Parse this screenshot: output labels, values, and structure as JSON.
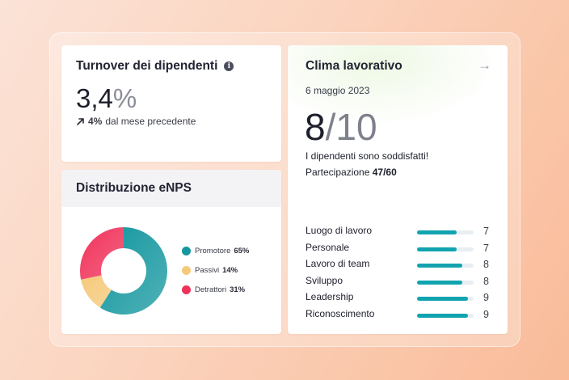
{
  "turnover": {
    "title": "Turnover dei dipendenti",
    "value": "3,4",
    "value_unit": "%",
    "delta_value": "4%",
    "delta_text": "dal mese precedente"
  },
  "enps": {
    "title": "Distribuzione eNPS",
    "segments": [
      {
        "label": "Promotore",
        "pct_label": "65%",
        "value": 65,
        "color": "#15979f"
      },
      {
        "label": "Passivi",
        "pct_label": "14%",
        "value": 14,
        "color": "#f5c97a"
      },
      {
        "label": "Detrattori",
        "pct_label": "31%",
        "value": 31,
        "color": "#f0325a"
      }
    ]
  },
  "clima": {
    "title": "Clima lavorativo",
    "date": "6 maggio 2023",
    "score": "8",
    "score_max": "/10",
    "message": "I dipendenti sono soddisfatti!",
    "participation_label": "Partecipazione",
    "participation_value": "47/60",
    "max_score": 10,
    "categories": [
      {
        "label": "Luogo di lavoro",
        "score": 7
      },
      {
        "label": "Personale",
        "score": 7
      },
      {
        "label": "Lavoro di team",
        "score": 8
      },
      {
        "label": "Sviluppo",
        "score": 8
      },
      {
        "label": "Leadership",
        "score": 9
      },
      {
        "label": "Riconoscimento",
        "score": 9
      }
    ]
  },
  "colors": {
    "accent_bar": "#12a3b0",
    "track": "#e8eef1"
  }
}
